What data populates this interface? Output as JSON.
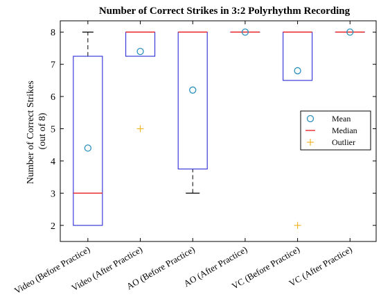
{
  "chart_data": {
    "type": "box",
    "title": "Number of Correct Strikes in 3:2 Polyrhythm Recording",
    "ylabel_line1": "Number of Correct Strikes",
    "ylabel_line2": "(out of 8)",
    "xlabel": "",
    "ylim": [
      1.5,
      8.35
    ],
    "yticks": [
      2,
      3,
      4,
      5,
      6,
      7,
      8
    ],
    "categories": [
      "Video (Before Practice)",
      "Video (After Practice)",
      "AO (Before Practice)",
      "AO (After Practice)",
      "VC (Before Practice)",
      "VC (After Practice)"
    ],
    "boxes": [
      {
        "q1": 2,
        "median": 3,
        "q3": 7.25,
        "whisker_low": 2,
        "whisker_high": 8,
        "mean": 4.4,
        "outliers": []
      },
      {
        "q1": 7.25,
        "median": 8,
        "q3": 8,
        "whisker_low": 7.25,
        "whisker_high": 8,
        "mean": 7.4,
        "outliers": [
          5
        ]
      },
      {
        "q1": 3.75,
        "median": 8,
        "q3": 8,
        "whisker_low": 3,
        "whisker_high": 8,
        "mean": 6.2,
        "outliers": []
      },
      {
        "q1": 8,
        "median": 8,
        "q3": 8,
        "whisker_low": 8,
        "whisker_high": 8,
        "mean": 8,
        "outliers": []
      },
      {
        "q1": 6.5,
        "median": 8,
        "q3": 8,
        "whisker_low": 6.5,
        "whisker_high": 8,
        "mean": 6.8,
        "outliers": [
          2
        ]
      },
      {
        "q1": 8,
        "median": 8,
        "q3": 8,
        "whisker_low": 8,
        "whisker_high": 8,
        "mean": 8,
        "outliers": []
      }
    ],
    "legend": {
      "position": "right",
      "entries": [
        {
          "label": "Mean",
          "marker": "circle",
          "color": "#2a8fbd"
        },
        {
          "label": "Median",
          "marker": "line",
          "color": "#e8282b"
        },
        {
          "label": "Outlier",
          "marker": "plus",
          "color": "#f0b428"
        }
      ]
    },
    "colors": {
      "box": "#3a3adb",
      "median": "#e8282b",
      "mean": "#2a8fbd",
      "outlier": "#f0b428",
      "whisker": "#000000"
    },
    "grid": false
  }
}
